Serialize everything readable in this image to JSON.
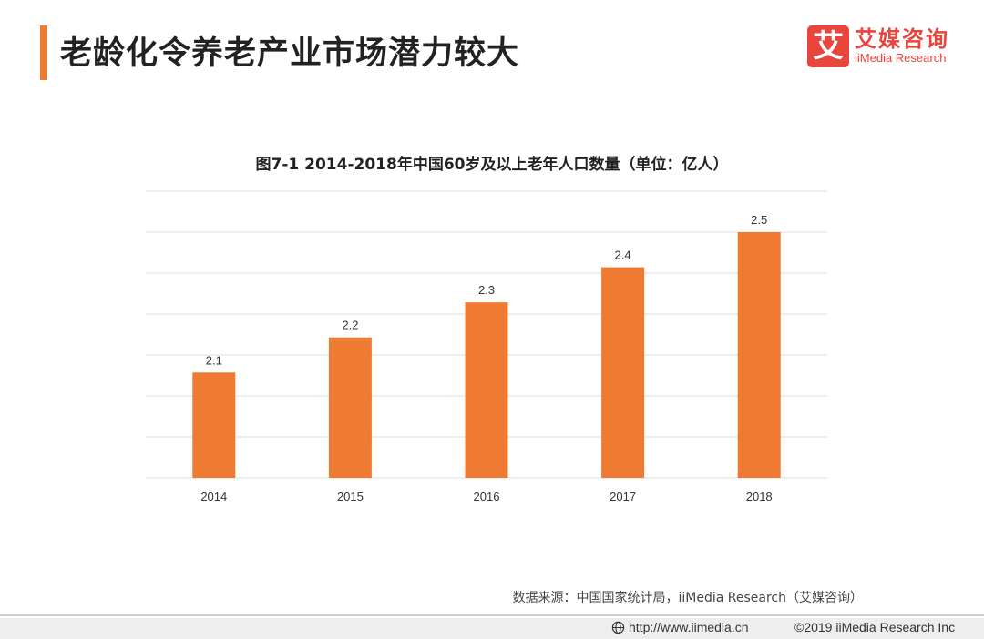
{
  "header": {
    "title": "老龄化令养老产业市场潜力较大",
    "logo_mark": "艾",
    "logo_cn": "艾媒咨询",
    "logo_en": "iiMedia Research"
  },
  "chart_data": {
    "type": "bar",
    "title": "图7-1 2014-2018年中国60岁及以上老年人口数量（单位：亿人）",
    "categories": [
      "2014",
      "2015",
      "2016",
      "2017",
      "2018"
    ],
    "values": [
      2.1,
      2.2,
      2.3,
      2.4,
      2.5
    ],
    "value_labels": [
      "2.1",
      "2.2",
      "2.3",
      "2.4",
      "2.5"
    ],
    "xlabel": "",
    "ylabel": "",
    "ylim": [
      1.8,
      2.5
    ],
    "color": "#ee7b31",
    "grid": true
  },
  "source": "数据来源：中国国家统计局，iiMedia Research（艾媒咨询）",
  "footer": {
    "url": "http://www.iimedia.cn",
    "copyright": "©2019  iiMedia Research Inc"
  }
}
